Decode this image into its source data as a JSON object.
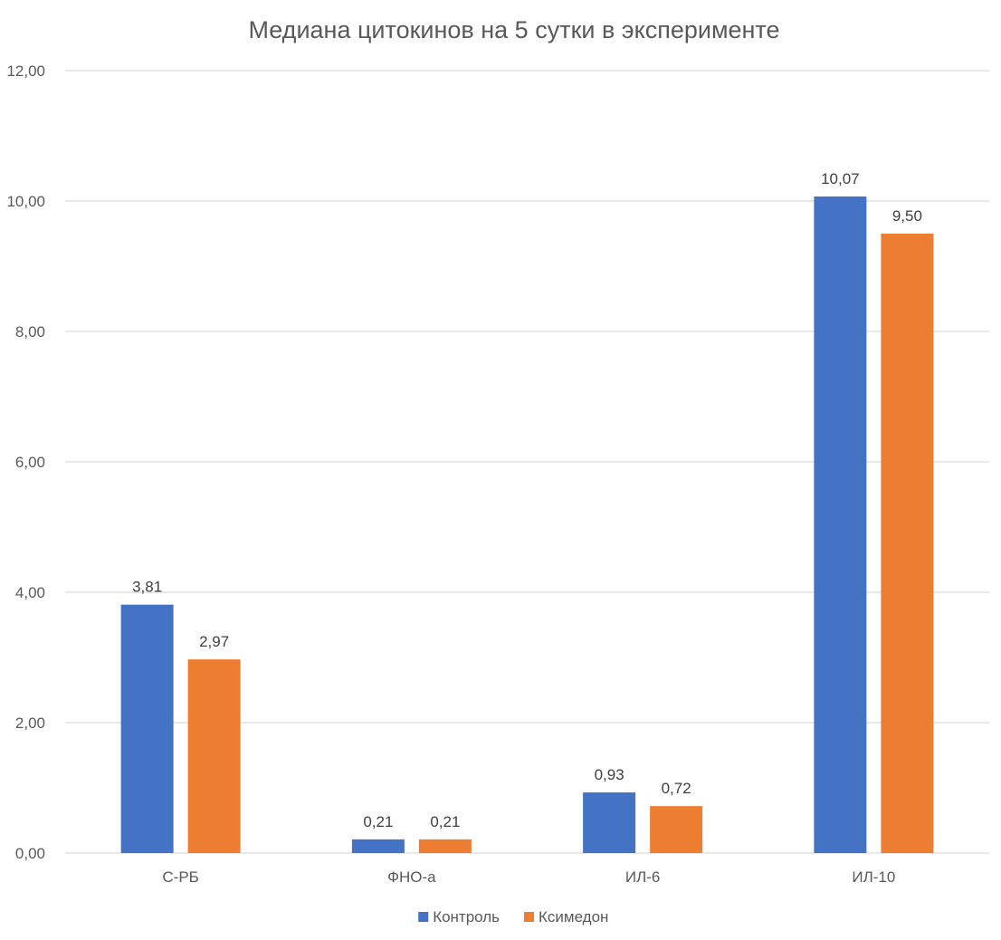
{
  "chart_data": {
    "type": "bar",
    "title": "Медиана цитокинов на 5 сутки в эксперименте",
    "xlabel": "",
    "ylabel": "",
    "categories": [
      "С-РБ",
      "ФНО-а",
      "ИЛ-6",
      "ИЛ-10"
    ],
    "series": [
      {
        "name": "Контроль",
        "color": "#4472C4",
        "values": [
          3.81,
          0.21,
          0.93,
          10.07
        ],
        "labels": [
          "3,81",
          "0,21",
          "0,93",
          "10,07"
        ]
      },
      {
        "name": "Ксимедон",
        "color": "#ED7D31",
        "values": [
          2.97,
          0.21,
          0.72,
          9.5
        ],
        "labels": [
          "2,97",
          "0,21",
          "0,72",
          "9,50"
        ]
      }
    ],
    "ylim": [
      0,
      12
    ],
    "yticks": [
      0,
      2,
      4,
      6,
      8,
      10,
      12
    ],
    "ytick_labels": [
      "0,00",
      "2,00",
      "4,00",
      "6,00",
      "8,00",
      "10,00",
      "12,00"
    ],
    "grid": true,
    "legend_position": "bottom"
  }
}
